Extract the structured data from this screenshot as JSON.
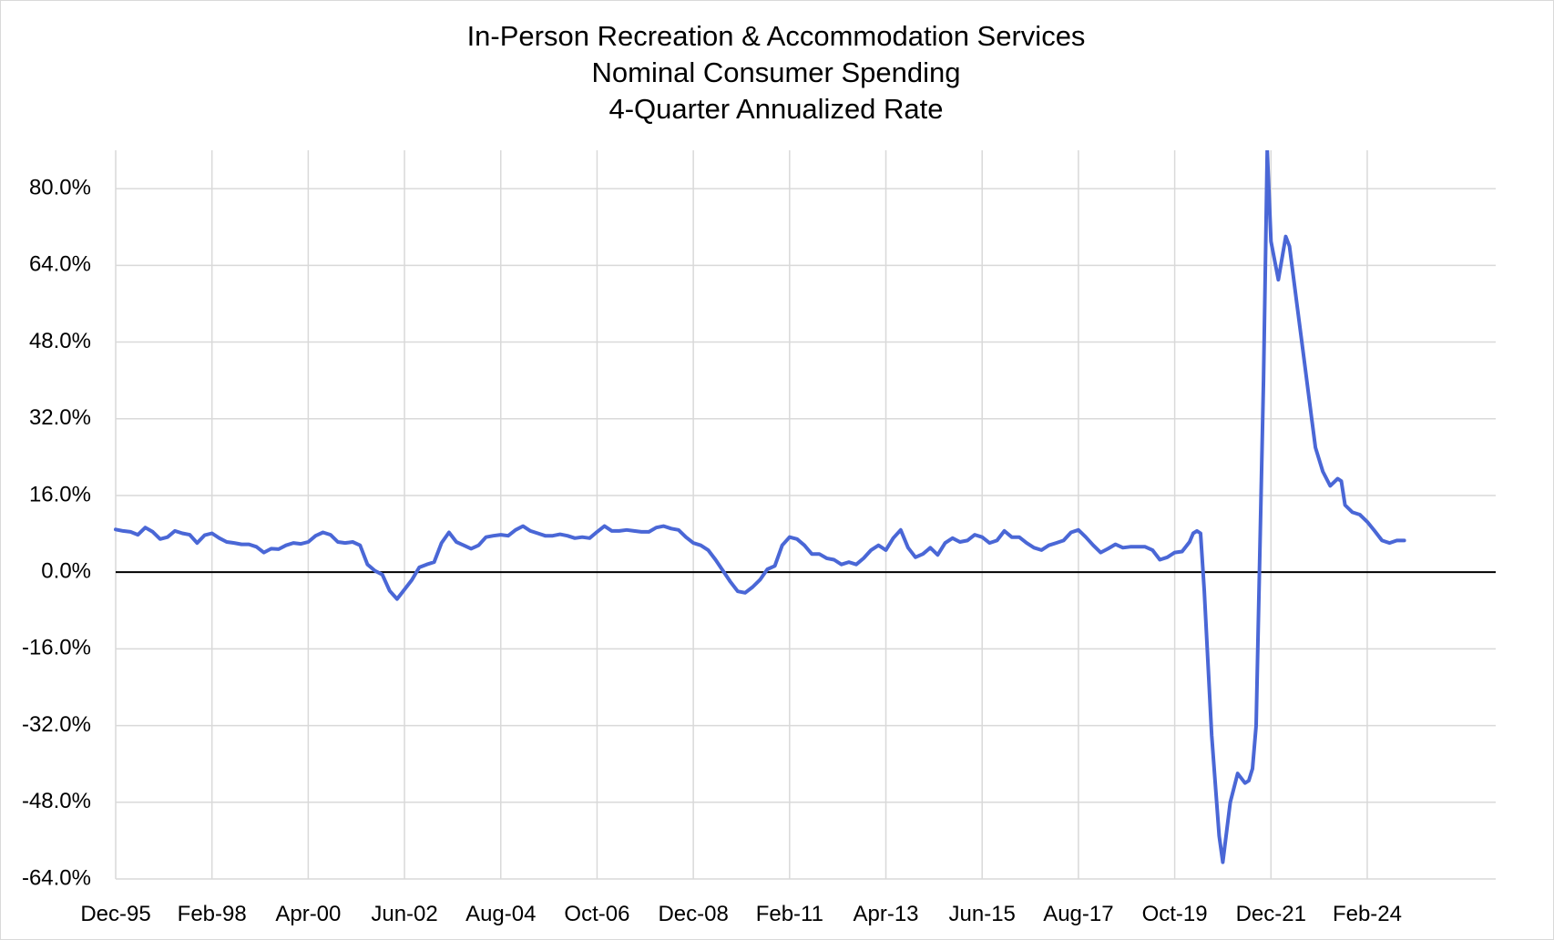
{
  "chart_data": {
    "type": "line",
    "title_lines": [
      "In-Person Recreation & Accommodation Services",
      "Nominal Consumer Spending",
      "4-Quarter Annualized Rate"
    ],
    "xlabel": "",
    "ylabel": "",
    "ylim": [
      -64,
      88
    ],
    "xlim": [
      "1995-12",
      "2025-12"
    ],
    "y_ticks": [
      {
        "value": 80,
        "label": "80.0%"
      },
      {
        "value": 64,
        "label": "64.0%"
      },
      {
        "value": 48,
        "label": "48.0%"
      },
      {
        "value": 32,
        "label": "32.0%"
      },
      {
        "value": 16,
        "label": "16.0%"
      },
      {
        "value": 0,
        "label": "0.0%"
      },
      {
        "value": -16,
        "label": "-16.0%"
      },
      {
        "value": -32,
        "label": "-32.0%"
      },
      {
        "value": -48,
        "label": "-48.0%"
      },
      {
        "value": -64,
        "label": "-64.0%"
      }
    ],
    "x_ticks": [
      {
        "date": "1995-12",
        "label": "Dec-95"
      },
      {
        "date": "1998-02",
        "label": "Feb-98"
      },
      {
        "date": "2000-04",
        "label": "Apr-00"
      },
      {
        "date": "2002-06",
        "label": "Jun-02"
      },
      {
        "date": "2004-08",
        "label": "Aug-04"
      },
      {
        "date": "2006-10",
        "label": "Oct-06"
      },
      {
        "date": "2008-12",
        "label": "Dec-08"
      },
      {
        "date": "2011-02",
        "label": "Feb-11"
      },
      {
        "date": "2013-04",
        "label": "Apr-13"
      },
      {
        "date": "2015-06",
        "label": "Jun-15"
      },
      {
        "date": "2017-08",
        "label": "Aug-17"
      },
      {
        "date": "2019-10",
        "label": "Oct-19"
      },
      {
        "date": "2021-12",
        "label": "Dec-21"
      },
      {
        "date": "2024-02",
        "label": "Feb-24"
      }
    ],
    "grid": {
      "horizontal": true,
      "vertical": true
    },
    "legend": "none",
    "series": [
      {
        "color": "#4a67d6",
        "points": [
          [
            "1995-12",
            8.9
          ],
          [
            "1996-02",
            8.6
          ],
          [
            "1996-04",
            8.4
          ],
          [
            "1996-06",
            7.8
          ],
          [
            "1996-08",
            9.3
          ],
          [
            "1996-10",
            8.4
          ],
          [
            "1996-12",
            6.9
          ],
          [
            "1997-02",
            7.3
          ],
          [
            "1997-04",
            8.6
          ],
          [
            "1997-06",
            8.1
          ],
          [
            "1997-08",
            7.8
          ],
          [
            "1997-10",
            6.1
          ],
          [
            "1997-12",
            7.7
          ],
          [
            "1998-02",
            8.1
          ],
          [
            "1998-04",
            7.1
          ],
          [
            "1998-06",
            6.3
          ],
          [
            "1998-08",
            6.1
          ],
          [
            "1998-10",
            5.8
          ],
          [
            "1998-12",
            5.8
          ],
          [
            "1999-02",
            5.3
          ],
          [
            "1999-04",
            4.1
          ],
          [
            "1999-06",
            4.9
          ],
          [
            "1999-08",
            4.8
          ],
          [
            "1999-10",
            5.6
          ],
          [
            "1999-12",
            6.1
          ],
          [
            "2000-02",
            5.9
          ],
          [
            "2000-04",
            6.3
          ],
          [
            "2000-06",
            7.6
          ],
          [
            "2000-08",
            8.3
          ],
          [
            "2000-10",
            7.8
          ],
          [
            "2000-12",
            6.3
          ],
          [
            "2001-02",
            6.1
          ],
          [
            "2001-04",
            6.3
          ],
          [
            "2001-06",
            5.6
          ],
          [
            "2001-08",
            1.6
          ],
          [
            "2001-10",
            0.3
          ],
          [
            "2001-12",
            -0.5
          ],
          [
            "2002-02",
            -3.9
          ],
          [
            "2002-04",
            -5.6
          ],
          [
            "2002-06",
            -3.6
          ],
          [
            "2002-08",
            -1.6
          ],
          [
            "2002-10",
            1.0
          ],
          [
            "2002-12",
            1.6
          ],
          [
            "2003-02",
            2.1
          ],
          [
            "2003-04",
            6.1
          ],
          [
            "2003-06",
            8.3
          ],
          [
            "2003-08",
            6.3
          ],
          [
            "2003-10",
            5.6
          ],
          [
            "2003-12",
            4.9
          ],
          [
            "2004-02",
            5.6
          ],
          [
            "2004-04",
            7.3
          ],
          [
            "2004-06",
            7.6
          ],
          [
            "2004-08",
            7.8
          ],
          [
            "2004-10",
            7.6
          ],
          [
            "2004-12",
            8.8
          ],
          [
            "2005-02",
            9.6
          ],
          [
            "2005-04",
            8.6
          ],
          [
            "2005-06",
            8.1
          ],
          [
            "2005-08",
            7.6
          ],
          [
            "2005-10",
            7.6
          ],
          [
            "2005-12",
            7.9
          ],
          [
            "2006-02",
            7.6
          ],
          [
            "2006-04",
            7.1
          ],
          [
            "2006-06",
            7.3
          ],
          [
            "2006-08",
            7.1
          ],
          [
            "2006-10",
            8.4
          ],
          [
            "2006-12",
            9.6
          ],
          [
            "2007-02",
            8.6
          ],
          [
            "2007-04",
            8.6
          ],
          [
            "2007-06",
            8.8
          ],
          [
            "2007-08",
            8.6
          ],
          [
            "2007-10",
            8.4
          ],
          [
            "2007-12",
            8.4
          ],
          [
            "2008-02",
            9.3
          ],
          [
            "2008-04",
            9.6
          ],
          [
            "2008-06",
            9.1
          ],
          [
            "2008-08",
            8.8
          ],
          [
            "2008-10",
            7.3
          ],
          [
            "2008-12",
            6.1
          ],
          [
            "2009-02",
            5.6
          ],
          [
            "2009-04",
            4.6
          ],
          [
            "2009-06",
            2.6
          ],
          [
            "2009-08",
            0.3
          ],
          [
            "2009-10",
            -2.0
          ],
          [
            "2009-12",
            -4.0
          ],
          [
            "2010-02",
            -4.3
          ],
          [
            "2010-04",
            -3.1
          ],
          [
            "2010-06",
            -1.6
          ],
          [
            "2010-08",
            0.6
          ],
          [
            "2010-10",
            1.3
          ],
          [
            "2010-12",
            5.6
          ],
          [
            "2011-02",
            7.3
          ],
          [
            "2011-04",
            6.9
          ],
          [
            "2011-06",
            5.6
          ],
          [
            "2011-08",
            3.8
          ],
          [
            "2011-10",
            3.8
          ],
          [
            "2011-12",
            2.9
          ],
          [
            "2012-02",
            2.6
          ],
          [
            "2012-04",
            1.6
          ],
          [
            "2012-06",
            2.1
          ],
          [
            "2012-08",
            1.6
          ],
          [
            "2012-10",
            2.9
          ],
          [
            "2012-12",
            4.6
          ],
          [
            "2013-02",
            5.6
          ],
          [
            "2013-04",
            4.6
          ],
          [
            "2013-06",
            7.1
          ],
          [
            "2013-08",
            8.8
          ],
          [
            "2013-10",
            5.1
          ],
          [
            "2013-12",
            3.1
          ],
          [
            "2014-02",
            3.8
          ],
          [
            "2014-04",
            5.1
          ],
          [
            "2014-06",
            3.6
          ],
          [
            "2014-08",
            6.1
          ],
          [
            "2014-10",
            7.1
          ],
          [
            "2014-12",
            6.3
          ],
          [
            "2015-02",
            6.6
          ],
          [
            "2015-04",
            7.8
          ],
          [
            "2015-06",
            7.3
          ],
          [
            "2015-08",
            6.1
          ],
          [
            "2015-10",
            6.6
          ],
          [
            "2015-12",
            8.6
          ],
          [
            "2016-02",
            7.3
          ],
          [
            "2016-04",
            7.3
          ],
          [
            "2016-06",
            6.1
          ],
          [
            "2016-08",
            5.1
          ],
          [
            "2016-10",
            4.6
          ],
          [
            "2016-12",
            5.6
          ],
          [
            "2017-02",
            6.1
          ],
          [
            "2017-04",
            6.6
          ],
          [
            "2017-06",
            8.3
          ],
          [
            "2017-08",
            8.8
          ],
          [
            "2017-10",
            7.3
          ],
          [
            "2017-12",
            5.6
          ],
          [
            "2018-02",
            4.1
          ],
          [
            "2018-04",
            4.9
          ],
          [
            "2018-06",
            5.8
          ],
          [
            "2018-08",
            5.1
          ],
          [
            "2018-10",
            5.3
          ],
          [
            "2018-12",
            5.3
          ],
          [
            "2019-02",
            5.3
          ],
          [
            "2019-04",
            4.6
          ],
          [
            "2019-06",
            2.6
          ],
          [
            "2019-08",
            3.1
          ],
          [
            "2019-10",
            4.1
          ],
          [
            "2019-12",
            4.3
          ],
          [
            "2020-02",
            6.3
          ],
          [
            "2020-03",
            8.1
          ],
          [
            "2020-04",
            8.6
          ],
          [
            "2020-05",
            8.1
          ],
          [
            "2020-06",
            -4.0
          ],
          [
            "2020-08",
            -34.0
          ],
          [
            "2020-10",
            -55.0
          ],
          [
            "2020-11",
            -60.5
          ],
          [
            "2021-01",
            -48.0
          ],
          [
            "2021-03",
            -42.0
          ],
          [
            "2021-05",
            -44.0
          ],
          [
            "2021-06",
            -43.5
          ],
          [
            "2021-07",
            -41.0
          ],
          [
            "2021-08",
            -32.0
          ],
          [
            "2021-10",
            40.0
          ],
          [
            "2021-11",
            88.0
          ],
          [
            "2021-12",
            69.0
          ],
          [
            "2022-02",
            61.0
          ],
          [
            "2022-04",
            70.0
          ],
          [
            "2022-05",
            68.0
          ],
          [
            "2022-07",
            56.0
          ],
          [
            "2022-09",
            44.0
          ],
          [
            "2022-11",
            32.0
          ],
          [
            "2022-12",
            26.0
          ],
          [
            "2023-02",
            21.0
          ],
          [
            "2023-04",
            18.0
          ],
          [
            "2023-06",
            19.5
          ],
          [
            "2023-07",
            19.0
          ],
          [
            "2023-08",
            14.0
          ],
          [
            "2023-10",
            12.5
          ],
          [
            "2023-12",
            12.0
          ],
          [
            "2024-02",
            10.5
          ],
          [
            "2024-04",
            8.6
          ],
          [
            "2024-06",
            6.6
          ],
          [
            "2024-08",
            6.1
          ],
          [
            "2024-10",
            6.6
          ],
          [
            "2024-12",
            6.6
          ]
        ]
      }
    ]
  }
}
